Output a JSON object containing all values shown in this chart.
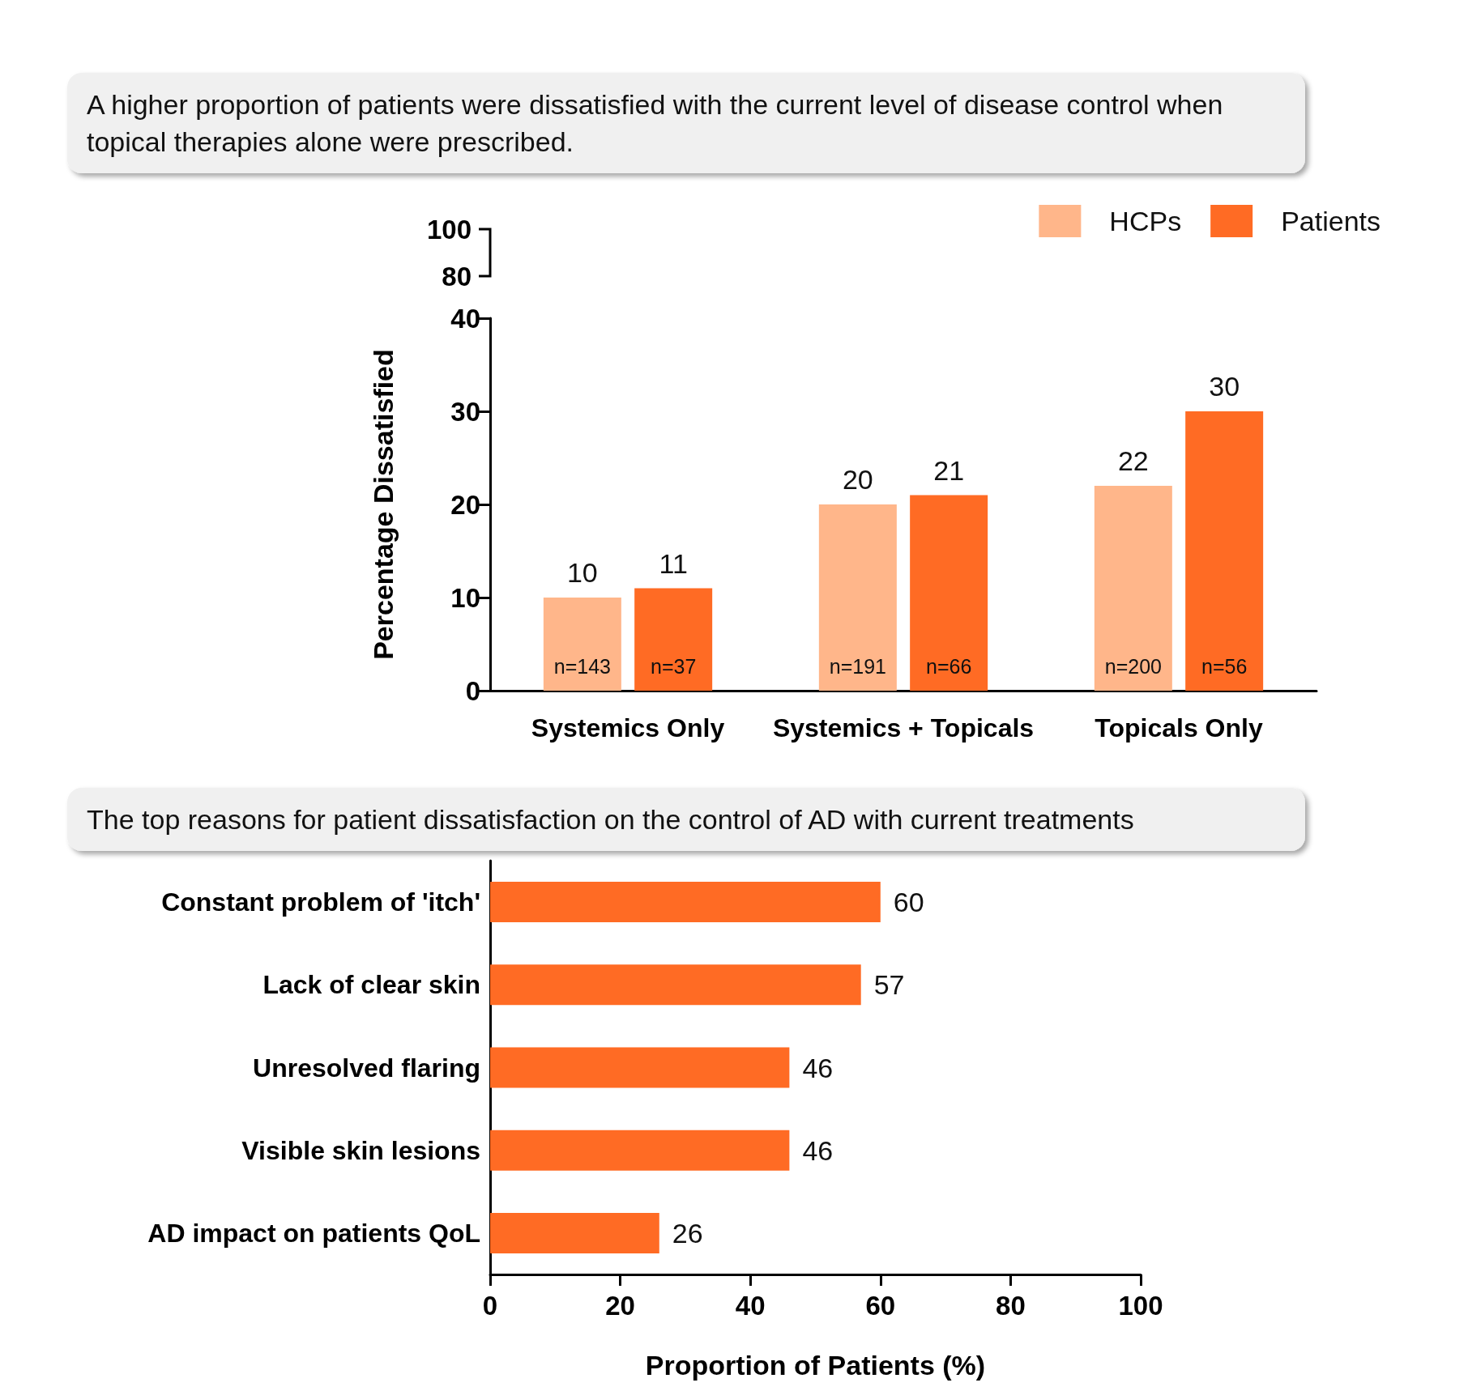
{
  "chart_data": [
    {
      "type": "bar",
      "title": "A higher proportion of patients were dissatisfied with the current level of disease control when topical therapies alone were prescribed.",
      "ylabel": "Percentage Dissatisfied",
      "categories": [
        "Systemics Only",
        "Systemics + Topicals",
        "Topicals Only"
      ],
      "series": [
        {
          "name": "HCPs",
          "color": "#ffb68a",
          "values": [
            10,
            20,
            22
          ]
        },
        {
          "name": "Patients",
          "color": "#ff6b24",
          "values": [
            11,
            21,
            30
          ]
        }
      ],
      "ylim": [
        0,
        40
      ],
      "yticks": [
        0,
        10,
        20,
        30,
        40
      ],
      "data_labels": true,
      "legend": "top right",
      "grid": false,
      "annotations": [
        "n=143",
        "n=37",
        "n=191",
        "n=66",
        "n=200",
        "n=56",
        "100",
        "80"
      ]
    },
    {
      "type": "bar",
      "orientation": "horizontal",
      "title": "The top reasons for patient dissatisfaction on the control of AD with current treatments",
      "xlabel": "Proportion of Patients (%)",
      "categories": [
        "Constant problem of 'itch'",
        "Lack of clear skin",
        "Unresolved flaring",
        "Visible skin lesions",
        "AD impact on patients QoL"
      ],
      "values": [
        60,
        57,
        46,
        46,
        26
      ],
      "color": "#ff6b24",
      "xlim": [
        0,
        100
      ],
      "xticks": [
        0,
        20,
        40,
        60,
        80,
        100
      ],
      "data_labels": true,
      "grid": false
    }
  ]
}
